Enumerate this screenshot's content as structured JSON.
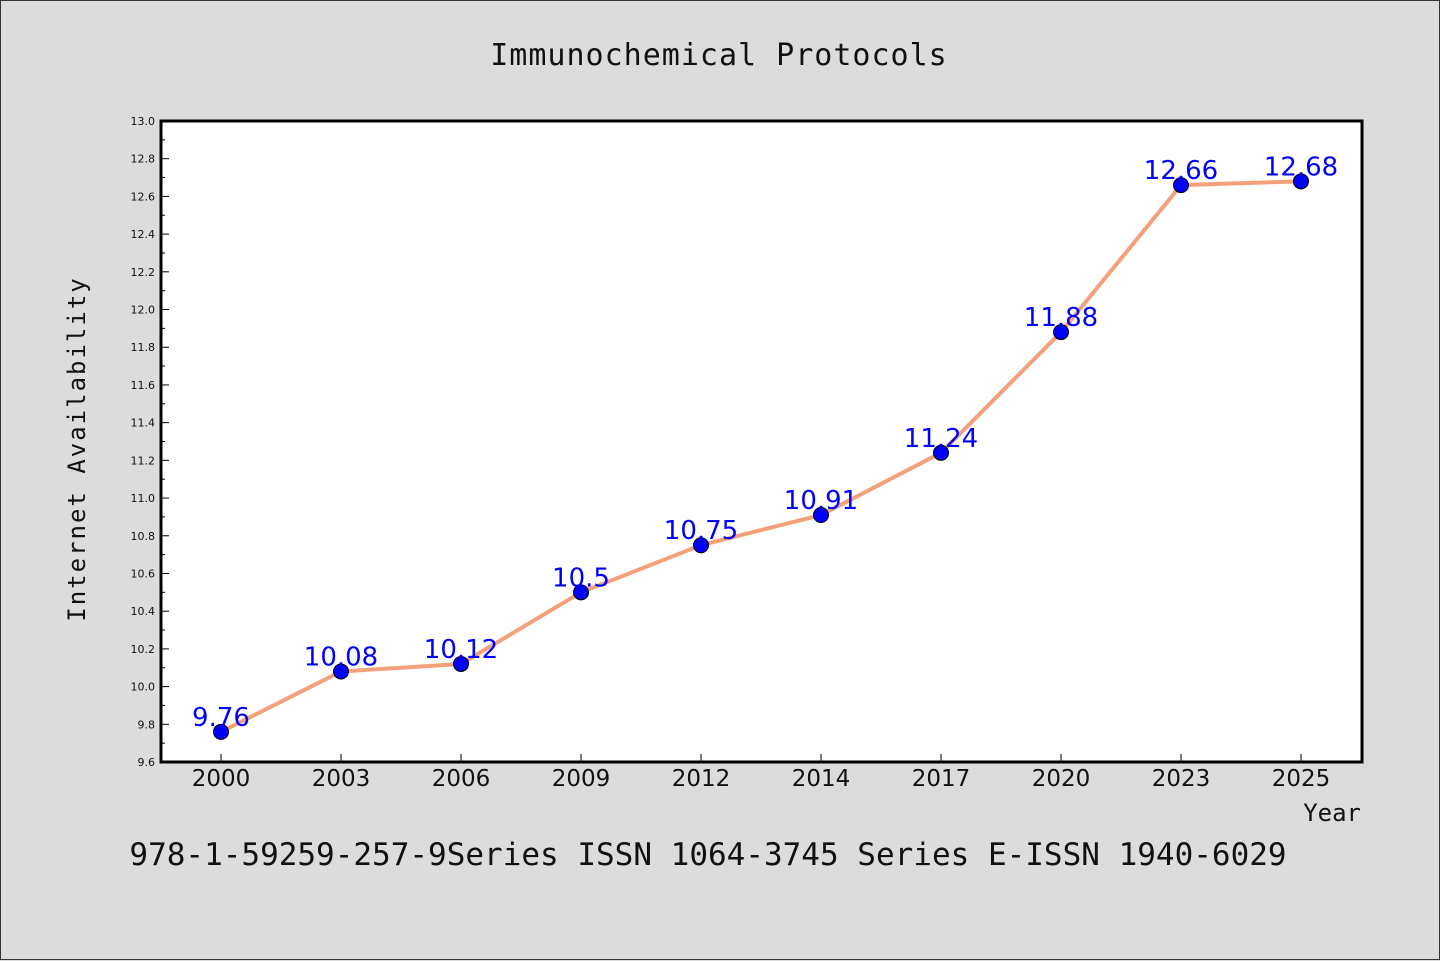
{
  "chart_data": {
    "type": "line",
    "title": "Immunochemical Protocols",
    "xlabel": "Year",
    "ylabel": "Internet Availability",
    "categories": [
      "2000",
      "2003",
      "2006",
      "2009",
      "2012",
      "2014",
      "2017",
      "2020",
      "2023",
      "2025"
    ],
    "series": [
      {
        "values": [
          9.76,
          10.08,
          10.12,
          10.5,
          10.75,
          10.91,
          11.24,
          11.88,
          12.66,
          12.68
        ],
        "data_labels": [
          "9.76",
          "10.08",
          "10.12",
          "10.5",
          "10.75",
          "10.91",
          "11.24",
          "11.88",
          "12.66",
          "12.68"
        ],
        "line_color": "#f4a07a",
        "marker_color": "#0000ff"
      }
    ],
    "ylim": [
      9.6,
      13.0
    ],
    "yticks": [
      "9.6",
      "9.8",
      "10.0",
      "10.2",
      "10.4",
      "10.6",
      "10.8",
      "11.0",
      "11.2",
      "11.4",
      "11.6",
      "11.8",
      "12.0",
      "12.2",
      "12.4",
      "12.6",
      "12.8",
      "13.0"
    ],
    "grid": false,
    "legend": "none",
    "background_color": "#dcdcdc",
    "plot_background_color": "#ffffff",
    "label_color": "#0000ff"
  },
  "footer": "978-1-59259-257-9Series ISSN 1064-3745 Series E-ISSN 1940-6029"
}
